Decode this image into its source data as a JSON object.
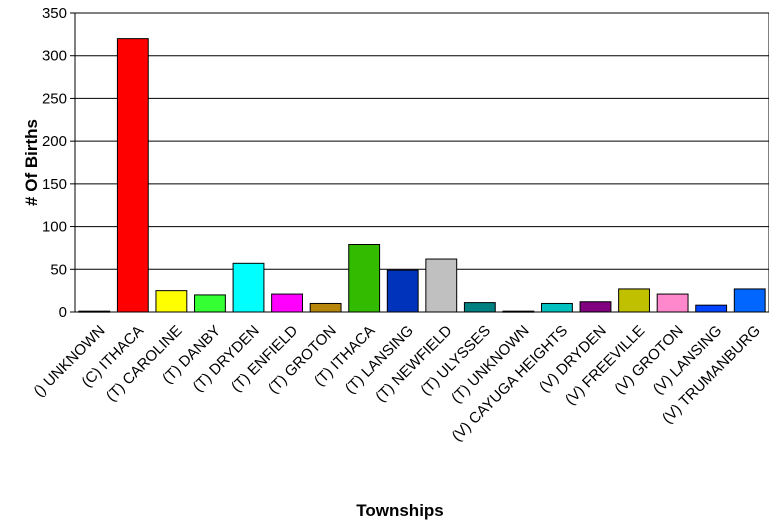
{
  "chart_data": {
    "type": "bar",
    "title": "",
    "xlabel": "Townships",
    "ylabel": "# Of Births",
    "ylim": [
      0,
      350
    ],
    "yticks": [
      0,
      50,
      100,
      150,
      200,
      250,
      300,
      350
    ],
    "grid": true,
    "legend": "none",
    "categories": [
      "() UNKNOWN",
      "(C) ITHACA",
      "(T) CAROLINE",
      "(T) DANBY",
      "(T) DRYDEN",
      "(T) ENFIELD",
      "(T) GROTON",
      "(T) ITHACA",
      "(T) LANSING",
      "(T) NEWFIELD",
      "(T) ULYSSES",
      "(T) UNKNOWN",
      "(V) CAYUGA HEIGHTS",
      "(V) DRYDEN",
      "(V) FREEVILLE",
      "(V) GROTON",
      "(V) LANSING",
      "(V) TRUMANBURG"
    ],
    "values": [
      1,
      320,
      25,
      20,
      57,
      21,
      10,
      79,
      49,
      62,
      11,
      1,
      10,
      12,
      27,
      21,
      8,
      27
    ],
    "colors": [
      "#000080",
      "#ff0000",
      "#ffff00",
      "#33ff33",
      "#00ffff",
      "#ff00ff",
      "#b8860b",
      "#33bb00",
      "#0033bb",
      "#c0c0c0",
      "#008080",
      "#000080",
      "#00c0c0",
      "#800080",
      "#c0c000",
      "#ff88cc",
      "#0044ff",
      "#0066ff"
    ]
  }
}
